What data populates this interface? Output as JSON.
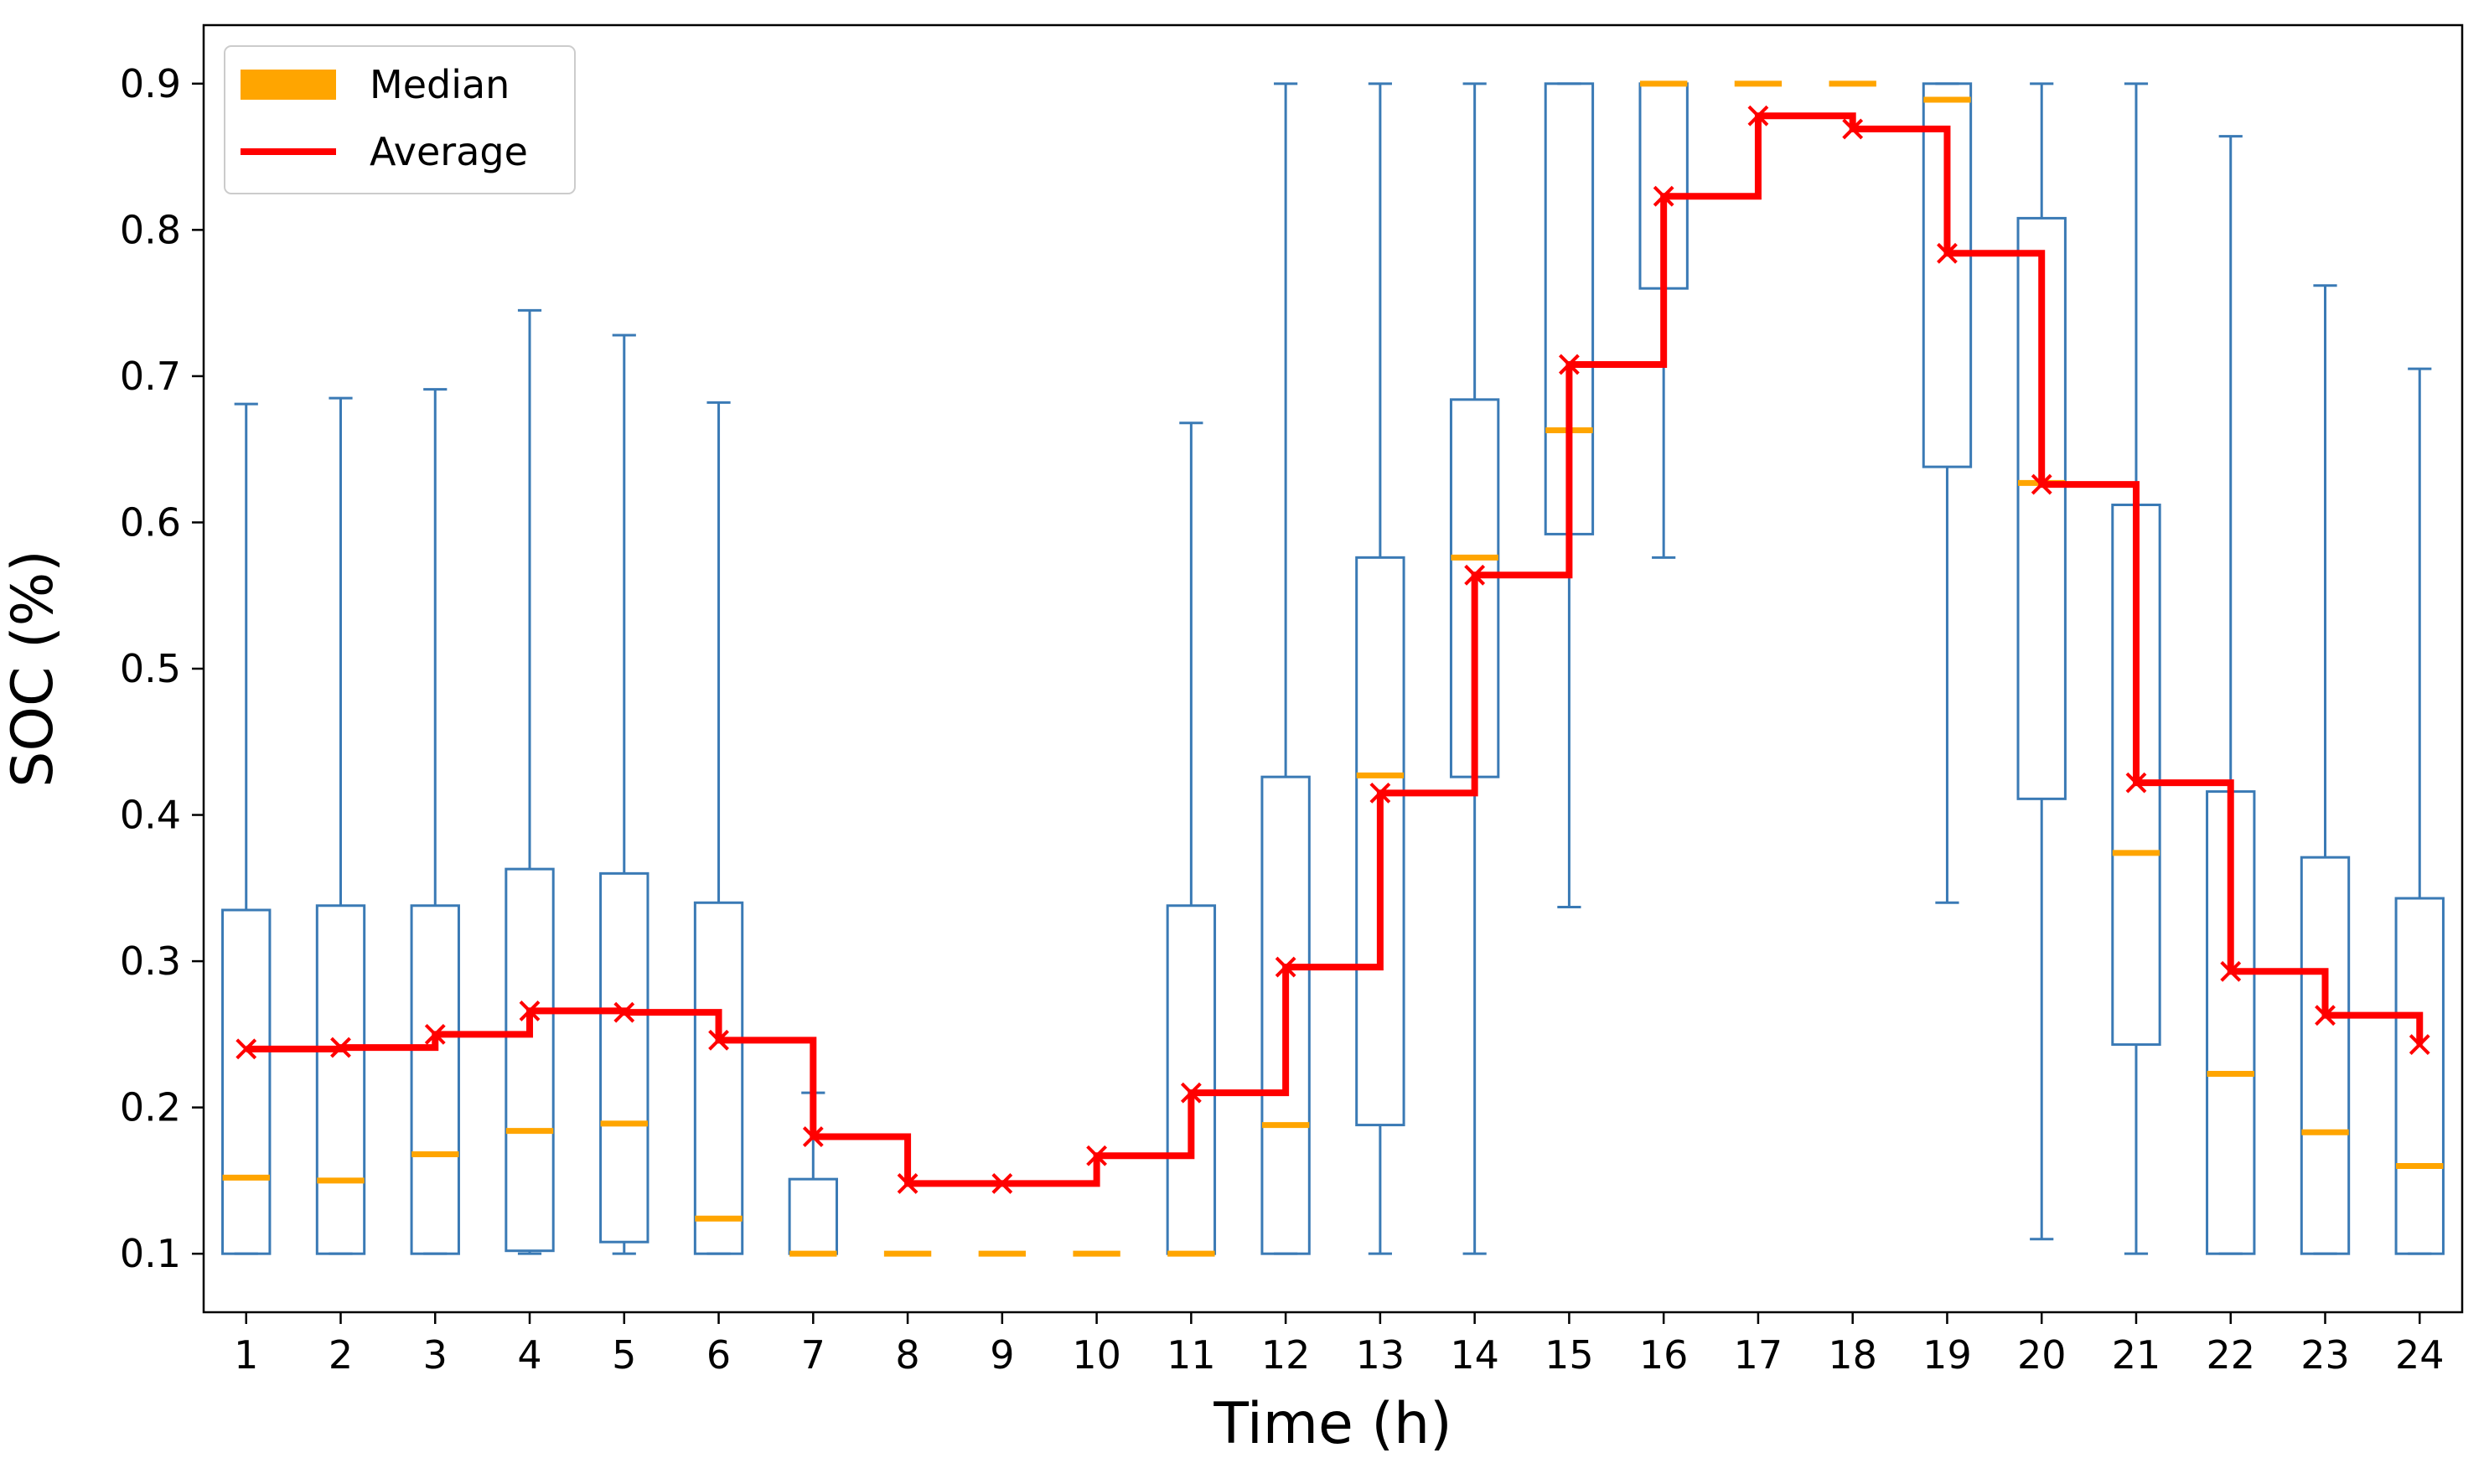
{
  "chart_data": {
    "type": "box",
    "xlabel": "Time (h)",
    "ylabel": "SOC (%)",
    "ylim": [
      0.06,
      0.94
    ],
    "xlim": [
      0.55,
      24.45
    ],
    "yticks": [
      "0.1",
      "0.2",
      "0.3",
      "0.4",
      "0.5",
      "0.6",
      "0.7",
      "0.8",
      "0.9"
    ],
    "categories": [
      "1",
      "2",
      "3",
      "4",
      "5",
      "6",
      "7",
      "8",
      "9",
      "10",
      "11",
      "12",
      "13",
      "14",
      "15",
      "16",
      "17",
      "18",
      "19",
      "20",
      "21",
      "22",
      "23",
      "24"
    ],
    "legend": {
      "position": "top-left",
      "entries": [
        {
          "label": "Median",
          "color": "#ffa500",
          "style": "patch"
        },
        {
          "label": "Average",
          "color": "#ff0000",
          "style": "line"
        }
      ]
    },
    "box_color": "#3a7ab5",
    "median_color": "#ffa500",
    "average_color": "#ff0000",
    "boxes": [
      {
        "hour": 1,
        "whislo": 0.1,
        "q1": 0.1,
        "med": 0.152,
        "q3": 0.335,
        "whishi": 0.681
      },
      {
        "hour": 2,
        "whislo": 0.1,
        "q1": 0.1,
        "med": 0.15,
        "q3": 0.338,
        "whishi": 0.685
      },
      {
        "hour": 3,
        "whislo": 0.1,
        "q1": 0.1,
        "med": 0.168,
        "q3": 0.338,
        "whishi": 0.691
      },
      {
        "hour": 4,
        "whislo": 0.1,
        "q1": 0.102,
        "med": 0.184,
        "q3": 0.363,
        "whishi": 0.745
      },
      {
        "hour": 5,
        "whislo": 0.1,
        "q1": 0.108,
        "med": 0.189,
        "q3": 0.36,
        "whishi": 0.728
      },
      {
        "hour": 6,
        "whislo": 0.1,
        "q1": 0.1,
        "med": 0.124,
        "q3": 0.34,
        "whishi": 0.682
      },
      {
        "hour": 7,
        "whislo": 0.1,
        "q1": 0.1,
        "med": 0.1,
        "q3": 0.151,
        "whishi": 0.21
      },
      {
        "hour": 8,
        "whislo": 0.1,
        "q1": 0.1,
        "med": 0.1,
        "q3": 0.1,
        "whishi": 0.1
      },
      {
        "hour": 9,
        "whislo": 0.1,
        "q1": 0.1,
        "med": 0.1,
        "q3": 0.1,
        "whishi": 0.1
      },
      {
        "hour": 10,
        "whislo": 0.1,
        "q1": 0.1,
        "med": 0.1,
        "q3": 0.1,
        "whishi": 0.1
      },
      {
        "hour": 11,
        "whislo": 0.1,
        "q1": 0.1,
        "med": 0.1,
        "q3": 0.338,
        "whishi": 0.668
      },
      {
        "hour": 12,
        "whislo": 0.1,
        "q1": 0.1,
        "med": 0.188,
        "q3": 0.426,
        "whishi": 0.9
      },
      {
        "hour": 13,
        "whislo": 0.1,
        "q1": 0.188,
        "med": 0.427,
        "q3": 0.576,
        "whishi": 0.9
      },
      {
        "hour": 14,
        "whislo": 0.1,
        "q1": 0.426,
        "med": 0.576,
        "q3": 0.684,
        "whishi": 0.9
      },
      {
        "hour": 15,
        "whislo": 0.337,
        "q1": 0.592,
        "med": 0.663,
        "q3": 0.9,
        "whishi": 0.9
      },
      {
        "hour": 16,
        "whislo": 0.576,
        "q1": 0.76,
        "med": 0.9,
        "q3": 0.9,
        "whishi": 0.9
      },
      {
        "hour": 17,
        "whislo": 0.9,
        "q1": 0.9,
        "med": 0.9,
        "q3": 0.9,
        "whishi": 0.9
      },
      {
        "hour": 18,
        "whislo": 0.9,
        "q1": 0.9,
        "med": 0.9,
        "q3": 0.9,
        "whishi": 0.9
      },
      {
        "hour": 19,
        "whislo": 0.34,
        "q1": 0.638,
        "med": 0.889,
        "q3": 0.9,
        "whishi": 0.9
      },
      {
        "hour": 20,
        "whislo": 0.11,
        "q1": 0.411,
        "med": 0.627,
        "q3": 0.808,
        "whishi": 0.9
      },
      {
        "hour": 21,
        "whislo": 0.1,
        "q1": 0.243,
        "med": 0.374,
        "q3": 0.612,
        "whishi": 0.9
      },
      {
        "hour": 22,
        "whislo": 0.1,
        "q1": 0.1,
        "med": 0.223,
        "q3": 0.416,
        "whishi": 0.864
      },
      {
        "hour": 23,
        "whislo": 0.1,
        "q1": 0.1,
        "med": 0.183,
        "q3": 0.371,
        "whishi": 0.762
      },
      {
        "hour": 24,
        "whislo": 0.1,
        "q1": 0.1,
        "med": 0.16,
        "q3": 0.343,
        "whishi": 0.705
      }
    ],
    "average": [
      0.24,
      0.241,
      0.25,
      0.266,
      0.265,
      0.246,
      0.18,
      0.148,
      0.148,
      0.167,
      0.21,
      0.296,
      0.415,
      0.564,
      0.708,
      0.823,
      0.878,
      0.869,
      0.784,
      0.626,
      0.422,
      0.293,
      0.263,
      0.243
    ]
  }
}
